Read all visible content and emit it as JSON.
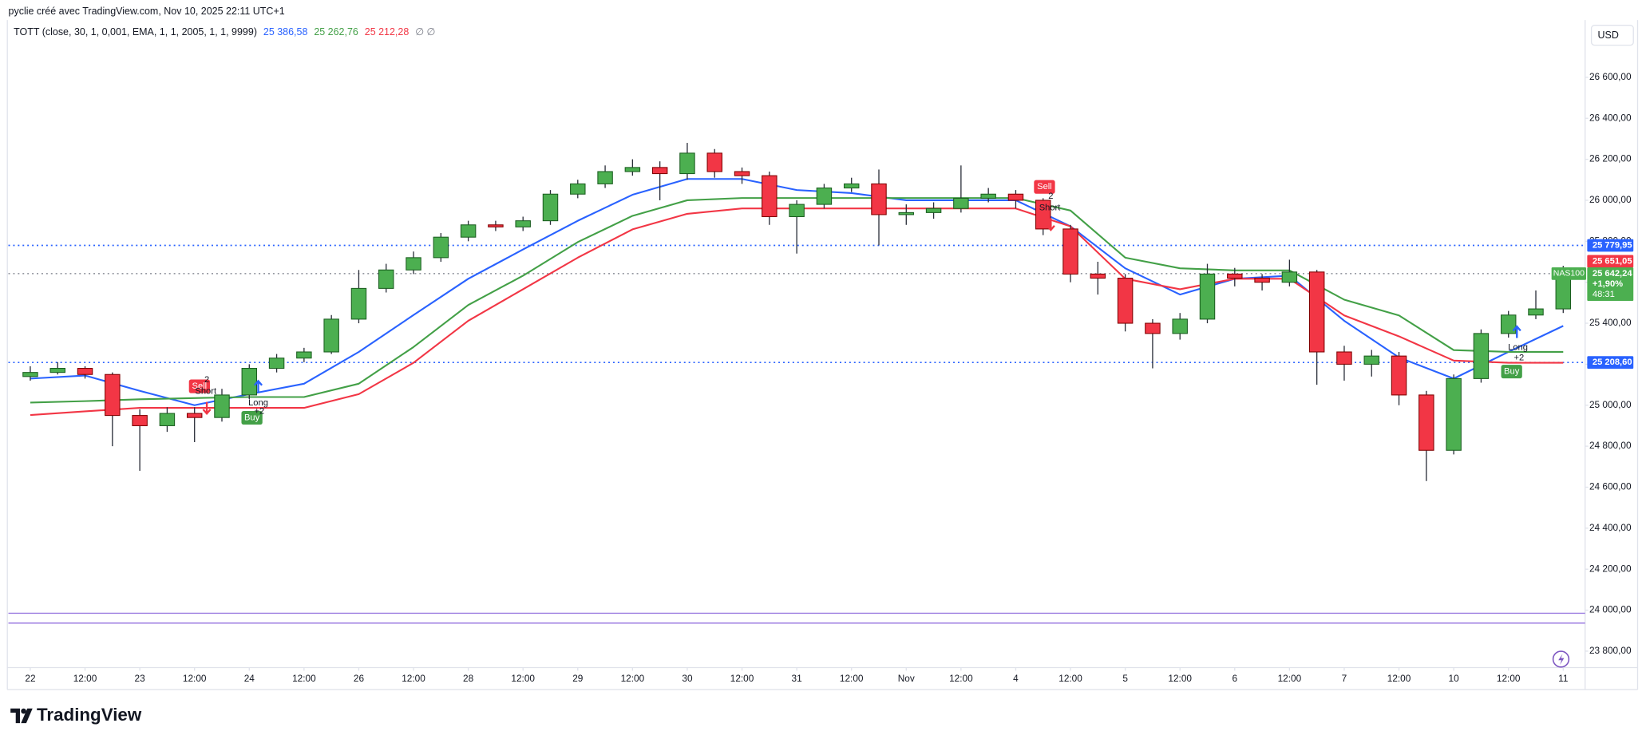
{
  "chart_data": {
    "type": "candlestick",
    "source": "pyclie créé avec TradingView.com, Nov 10, 2025 22:11 UTC+1",
    "indicator": "TOTT (close, 30, 1, 0,001, EMA, 1, 1, 2005, 1, 1, 9999)",
    "indicator_values": [
      {
        "label": "25 386,58",
        "color": "#2962ff"
      },
      {
        "label": "25 262,76",
        "color": "#43a047"
      },
      {
        "label": "25 212,28",
        "color": "#f23645"
      },
      {
        "label": "∅ ∅",
        "color": "#787b86"
      }
    ],
    "currency": "USD",
    "symbol": "NAS100",
    "change": "+1,90%",
    "countdown": "48:31",
    "brand": "TradingView",
    "up_color": "#4caf50",
    "down_color": "#f23645",
    "x": [
      0,
      0.25,
      0.5,
      0.75,
      1,
      1.25,
      1.5,
      1.75,
      2,
      2.25,
      2.5,
      2.75,
      3,
      3.25,
      3.5,
      3.75,
      4,
      4.25,
      4.5,
      4.75,
      5,
      5.25,
      5.5,
      5.75,
      6,
      6.25,
      6.5,
      6.75,
      7,
      7.25,
      7.5,
      7.75,
      8,
      8.25,
      8.5,
      8.75,
      9,
      9.25,
      9.5,
      9.75,
      10,
      10.25,
      10.5,
      10.75,
      11,
      11.25,
      11.5,
      11.75,
      12,
      12.25,
      12.5,
      12.75,
      13,
      13.25,
      13.5,
      13.75,
      14
    ],
    "open": [
      25140,
      25160,
      25180,
      25150,
      24950,
      24900,
      24960,
      24940,
      25050,
      25180,
      25230,
      25260,
      25420,
      25570,
      25660,
      25720,
      25820,
      25880,
      25870,
      25900,
      26030,
      26080,
      26140,
      26160,
      26130,
      26230,
      26140,
      26120,
      25920,
      25980,
      26060,
      26080,
      25930,
      25940,
      25960,
      26010,
      26030,
      26000,
      25860,
      25640,
      25620,
      25400,
      25350,
      25420,
      25640,
      25620,
      25600,
      25650,
      25260,
      25200,
      25240,
      25050,
      24780,
      25130,
      25350,
      25440,
      25470
    ],
    "high": [
      25190,
      25210,
      25190,
      25160,
      24980,
      24990,
      24990,
      25080,
      25200,
      25250,
      25280,
      25440,
      25660,
      25690,
      25750,
      25840,
      25900,
      25900,
      25920,
      26050,
      26100,
      26170,
      26200,
      26190,
      26280,
      26250,
      26160,
      26140,
      26000,
      26080,
      26110,
      26150,
      25980,
      25990,
      26170,
      26060,
      26050,
      26010,
      25880,
      25700,
      25640,
      25420,
      25450,
      25690,
      25670,
      25640,
      25710,
      25660,
      25290,
      25270,
      25260,
      25070,
      25150,
      25370,
      25460,
      25560,
      25680
    ],
    "low": [
      25120,
      25150,
      25130,
      24800,
      24680,
      24870,
      24820,
      24920,
      25030,
      25160,
      25210,
      25250,
      25400,
      25550,
      25640,
      25700,
      25800,
      25850,
      25850,
      25880,
      26010,
      26060,
      26120,
      26000,
      26100,
      26110,
      26080,
      25880,
      25740,
      25960,
      26040,
      25780,
      25880,
      25910,
      25940,
      25990,
      25960,
      25830,
      25600,
      25540,
      25360,
      25180,
      25320,
      25400,
      25580,
      25560,
      25580,
      25100,
      25120,
      25140,
      25000,
      24630,
      24760,
      25110,
      25330,
      25420,
      25450
    ],
    "close": [
      25160,
      25180,
      25150,
      24950,
      24900,
      24960,
      24940,
      25050,
      25180,
      25230,
      25260,
      25420,
      25570,
      25660,
      25720,
      25820,
      25880,
      25870,
      25900,
      26030,
      26080,
      26140,
      26160,
      26130,
      26230,
      26140,
      26120,
      25920,
      25980,
      26060,
      26080,
      25930,
      25940,
      25960,
      26010,
      26030,
      26000,
      25860,
      25640,
      25620,
      25400,
      25350,
      25420,
      25640,
      25620,
      25600,
      25650,
      25260,
      25200,
      25240,
      25050,
      24780,
      25130,
      25350,
      25440,
      25470,
      25642.24
    ],
    "lines": [
      {
        "color": "#2962ff",
        "x": [
          0,
          0.5,
          1,
          1.5,
          2,
          2.5,
          3,
          3.5,
          4,
          4.5,
          5,
          5.5,
          6,
          6.5,
          7,
          7.5,
          8,
          8.5,
          9,
          9.5,
          10,
          10.5,
          11,
          11.5,
          12,
          12.5,
          13,
          13.5,
          14
        ],
        "values": [
          25130,
          25145,
          25070,
          25000,
          25054,
          25105,
          25260,
          25440,
          25617,
          25760,
          25900,
          26027,
          26104,
          26104,
          26050,
          26035,
          26000,
          26000,
          26000,
          25873,
          25668,
          25540,
          25617,
          25632,
          25412,
          25233,
          25130,
          25260,
          25387
        ]
      },
      {
        "color": "#43a047",
        "x": [
          0,
          0.5,
          1,
          1.5,
          2,
          2.5,
          3,
          3.5,
          4,
          4.5,
          5,
          5.5,
          6,
          6.5,
          7,
          7.5,
          8,
          8.5,
          9,
          9.5,
          10,
          10.5,
          11,
          11.5,
          12,
          12.5,
          13,
          13.5,
          14
        ],
        "values": [
          25013,
          25020,
          25029,
          25035,
          25040,
          25040,
          25105,
          25284,
          25489,
          25632,
          25796,
          25924,
          26000,
          26011,
          26011,
          26011,
          26011,
          26011,
          26011,
          25950,
          25720,
          25668,
          25658,
          25658,
          25515,
          25438,
          25269,
          25260,
          25260
        ]
      },
      {
        "color": "#f23645",
        "x": [
          0,
          0.5,
          1,
          1.5,
          2,
          2.5,
          3,
          3.5,
          4,
          4.5,
          5,
          5.5,
          6,
          6.5,
          7,
          7.5,
          8,
          8.5,
          9,
          9.5,
          10,
          10.5,
          11,
          11.5,
          12,
          12.5,
          13,
          13.5,
          14
        ],
        "values": [
          24952,
          24970,
          24987,
          24987,
          24987,
          24987,
          25054,
          25207,
          25412,
          25566,
          25720,
          25858,
          25934,
          25960,
          25960,
          25960,
          25960,
          25960,
          25960,
          25873,
          25617,
          25566,
          25617,
          25617,
          25438,
          25336,
          25218,
          25207,
          25207
        ]
      }
    ],
    "price_lines": [
      {
        "value": 25779.95,
        "label": "25 779,95",
        "color": "#2962ff",
        "line_color": "#2962ff",
        "style": "dotted"
      },
      {
        "value": 25651.05,
        "label": "25 651,05",
        "color": "#f23645",
        "style": "none"
      },
      {
        "value": 25642.24,
        "label": "25 642,24",
        "color": "#4caf50",
        "line_color": "#9598a1",
        "style": "dotted"
      },
      {
        "value": 25208.6,
        "label": "25 208,60",
        "color": "#2962ff",
        "line_color": "#2962ff",
        "style": "dotted"
      },
      {
        "value": 23985,
        "line_color": "#9c7ce0",
        "style": "solid"
      },
      {
        "value": 23937,
        "line_color": "#9c7ce0",
        "style": "solid"
      }
    ],
    "signals": [
      {
        "badge": "Sell",
        "count": "2",
        "text": "Short",
        "color": "#f23645"
      },
      {
        "badge": "Buy",
        "count": "+2",
        "text": "Long",
        "color": "#43a047"
      },
      {
        "badge": "Sell",
        "count": "2",
        "text": "Short",
        "color": "#f23645"
      },
      {
        "badge": "Buy",
        "count": "+2",
        "text": "Long",
        "color": "#43a047"
      }
    ],
    "xlim": [
      -0.2,
      14.2
    ],
    "ylim": [
      23720,
      26900
    ],
    "xticks": [
      {
        "value": 0,
        "label": "22"
      },
      {
        "value": 0.5,
        "label": "12:00"
      },
      {
        "value": 1,
        "label": "23"
      },
      {
        "value": 1.5,
        "label": "12:00"
      },
      {
        "value": 2,
        "label": "24"
      },
      {
        "value": 2.5,
        "label": "12:00"
      },
      {
        "value": 3,
        "label": "26"
      },
      {
        "value": 3.5,
        "label": "12:00"
      },
      {
        "value": 4,
        "label": "28"
      },
      {
        "value": 4.5,
        "label": "12:00"
      },
      {
        "value": 5,
        "label": "29"
      },
      {
        "value": 5.5,
        "label": "12:00"
      },
      {
        "value": 6,
        "label": "30"
      },
      {
        "value": 6.5,
        "label": "12:00"
      },
      {
        "value": 7,
        "label": "31"
      },
      {
        "value": 7.5,
        "label": "12:00"
      },
      {
        "value": 8,
        "label": "Nov"
      },
      {
        "value": 8.5,
        "label": "12:00"
      },
      {
        "value": 9,
        "label": "4"
      },
      {
        "value": 9.5,
        "label": "12:00"
      },
      {
        "value": 10,
        "label": "5"
      },
      {
        "value": 10.5,
        "label": "12:00"
      },
      {
        "value": 11,
        "label": "6"
      },
      {
        "value": 11.5,
        "label": "12:00"
      },
      {
        "value": 12,
        "label": "7"
      },
      {
        "value": 12.5,
        "label": "12:00"
      },
      {
        "value": 13,
        "label": "10"
      },
      {
        "value": 13.5,
        "label": "12:00"
      },
      {
        "value": 14,
        "label": "11"
      }
    ],
    "yticks": [
      {
        "value": 23800,
        "label": "23 800,00"
      },
      {
        "value": 24000,
        "label": "24 000,00"
      },
      {
        "value": 24200,
        "label": "24 200,00"
      },
      {
        "value": 24400,
        "label": "24 400,00"
      },
      {
        "value": 24600,
        "label": "24 600,00"
      },
      {
        "value": 24800,
        "label": "24 800,00"
      },
      {
        "value": 25000,
        "label": "25 000,00"
      },
      {
        "value": 25200,
        "label": "25 200,00"
      },
      {
        "value": 25400,
        "label": "25 400,00"
      },
      {
        "value": 25600,
        "label": "25 600,00"
      },
      {
        "value": 25800,
        "label": "25 800,00"
      },
      {
        "value": 26000,
        "label": "26 000,00"
      },
      {
        "value": 26200,
        "label": "26 200,00"
      },
      {
        "value": 26400,
        "label": "26 400,00"
      },
      {
        "value": 26600,
        "label": "26 600,00"
      }
    ]
  }
}
